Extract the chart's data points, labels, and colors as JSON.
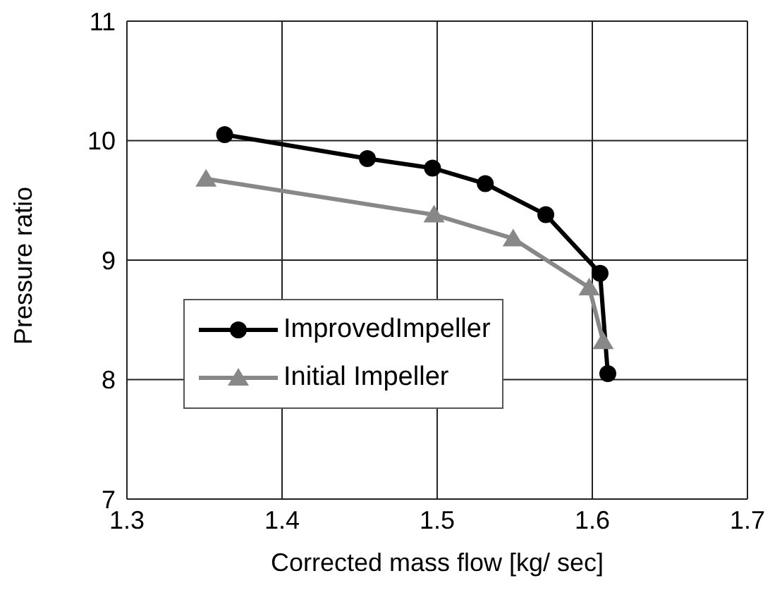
{
  "chart_data": {
    "type": "line",
    "xlabel": "Corrected mass flow [kg/ sec]",
    "ylabel": "Pressure ratio",
    "xlim": [
      1.3,
      1.7
    ],
    "xticks": [
      1.3,
      1.4,
      1.5,
      1.6,
      1.7
    ],
    "ylim": [
      7,
      11
    ],
    "yticks": [
      7,
      8,
      9,
      10,
      11
    ],
    "grid": true,
    "legend": "left",
    "series": [
      {
        "name": "ImprovedImpeller",
        "color": "#000000",
        "marker": "circle",
        "x": [
          1.363,
          1.455,
          1.497,
          1.531,
          1.57,
          1.605,
          1.61
        ],
        "values": [
          10.05,
          9.85,
          9.77,
          9.64,
          9.38,
          8.89,
          8.05
        ]
      },
      {
        "name": "Initial Impeller",
        "color": "#888888",
        "marker": "triangle",
        "x": [
          1.351,
          1.498,
          1.549,
          1.598,
          1.607
        ],
        "values": [
          9.68,
          9.38,
          9.18,
          8.77,
          8.32
        ]
      }
    ]
  }
}
